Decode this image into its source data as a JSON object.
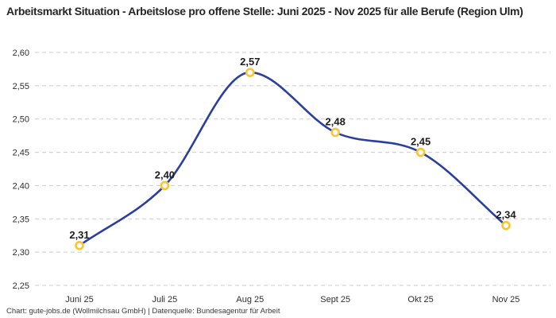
{
  "header": {
    "title": "Arbeitsmarkt Situation - Arbeitslose pro offene Stelle: Juni 2025 - Nov 2025 für alle Berufe (Region Ulm)"
  },
  "footer": {
    "credit": "Chart: gute-jobs.de (Wollmilchsau GmbH) | Datenquelle: Bundesagentur für Arbeit"
  },
  "chart_data": {
    "type": "line",
    "categories": [
      "Juni 25",
      "Juli 25",
      "Aug 25",
      "Sept 25",
      "Okt 25",
      "Nov 25"
    ],
    "values": [
      2.31,
      2.4,
      2.57,
      2.48,
      2.45,
      2.34
    ],
    "point_labels": [
      "2,31",
      "2,40",
      "2,57",
      "2,48",
      "2,45",
      "2,34"
    ],
    "y_ticks": {
      "values": [
        2.6,
        2.55,
        2.5,
        2.45,
        2.4,
        2.35,
        2.3,
        2.25
      ],
      "labels": [
        "2,60",
        "2,55",
        "2,50",
        "2,45",
        "2,40",
        "2,35",
        "2,30",
        "2,25"
      ]
    },
    "ylim": [
      2.25,
      2.6
    ],
    "xlabel": "",
    "ylabel": "",
    "legend": "none",
    "grid": "horizontal-dashed",
    "colors": {
      "line": "#2a3f9f",
      "marker_ring": "#fdc331",
      "marker_fill": "#ffffff",
      "grid": "#cbcbcb"
    }
  }
}
